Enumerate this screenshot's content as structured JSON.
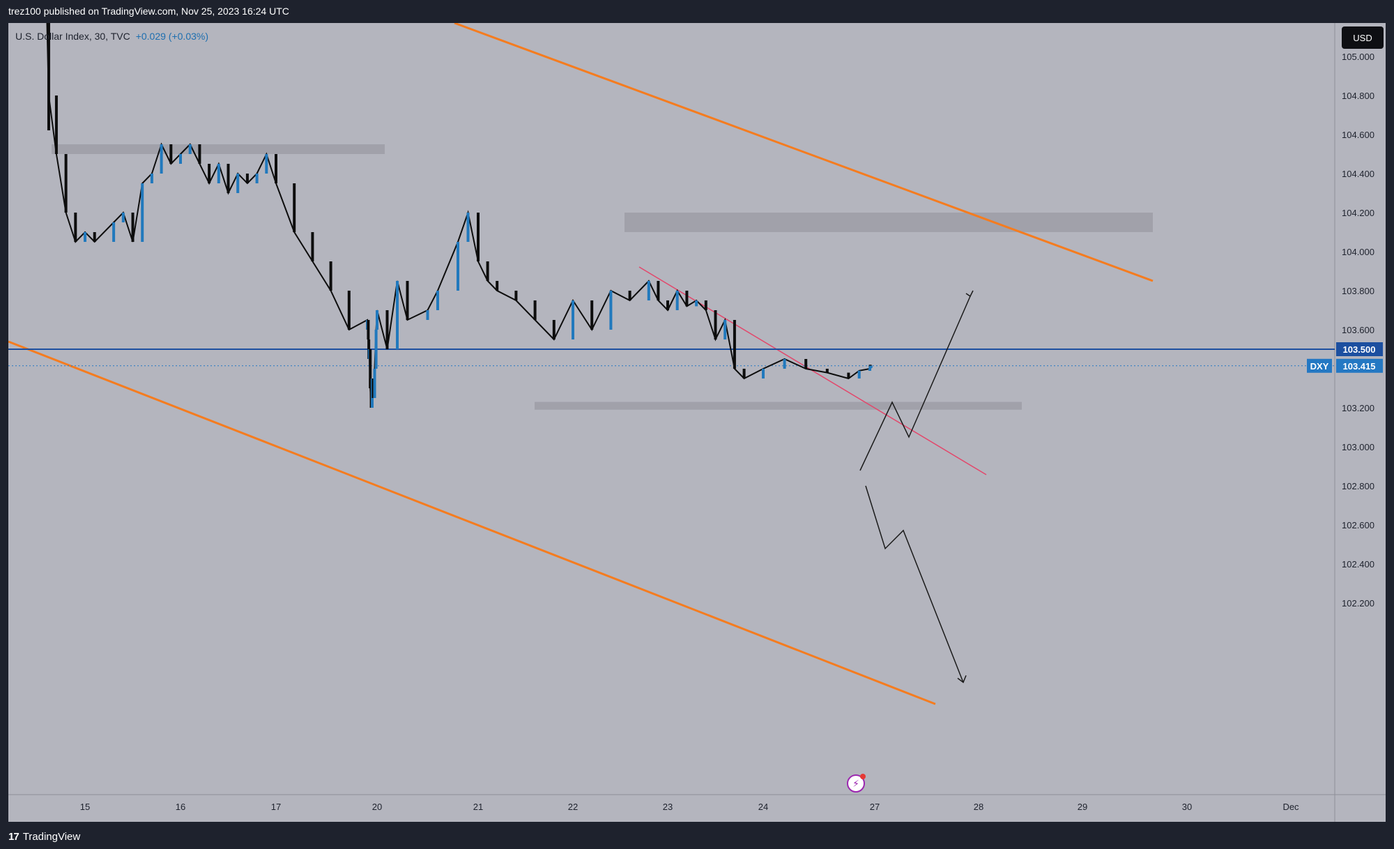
{
  "header": {
    "published": "trez100 published on TradingView.com, Nov 25, 2023 16:24 UTC"
  },
  "legend": {
    "symbol": "U.S. Dollar Index, 30, TVC",
    "change": "+0.029 (+0.03%)"
  },
  "currency_button": "USD",
  "footer": {
    "brand": "TradingView"
  },
  "price_labels": {
    "level_line": "103.500",
    "ticker": "DXY",
    "last_price": "103.415"
  },
  "colors": {
    "background": "#b4b5be",
    "frame": "#1e222d",
    "channel": "#f57c1f",
    "trendline": "#e3476b",
    "level": "#1c4fa0",
    "last_price": "#2478c3",
    "zone": "#9d9ea7",
    "candle_up": "#2179bd",
    "candle_down": "#0d0d0d"
  },
  "chart_data": {
    "type": "line",
    "title": "U.S. Dollar Index, 30, TVC",
    "xlabel": "",
    "ylabel": "",
    "x_ticks": [
      "15",
      "16",
      "17",
      "20",
      "21",
      "22",
      "23",
      "24",
      "27",
      "28",
      "29",
      "30",
      "Dec"
    ],
    "y_ticks": [
      "105.000",
      "104.800",
      "104.600",
      "104.400",
      "104.200",
      "104.000",
      "103.800",
      "103.600",
      "103.400",
      "103.200",
      "103.000",
      "102.800",
      "102.600",
      "102.400",
      "102.200"
    ],
    "ylim": [
      102.1,
      105.2
    ],
    "series": [
      {
        "x": [
          14.6,
          14.62,
          14.7,
          14.8,
          14.9,
          15.0,
          15.1,
          15.3,
          15.4,
          15.5,
          15.6,
          15.7,
          15.8,
          15.9,
          16.0,
          16.1,
          16.2,
          16.3,
          16.4,
          16.5,
          16.6,
          16.7,
          16.8,
          16.9,
          17.0,
          17.2,
          17.4,
          17.6,
          17.8,
          18.0,
          18.2,
          18.3,
          18.4,
          18.6,
          18.8,
          19.0,
          19.2,
          19.5,
          19.8,
          20.0,
          20.1,
          20.2,
          20.3,
          20.5,
          20.6,
          20.8,
          20.9,
          21.0,
          21.1,
          21.2,
          21.4,
          21.6,
          21.8,
          22.0,
          22.2,
          22.4,
          22.6,
          22.8,
          22.9,
          23.0,
          23.1,
          23.2,
          23.3,
          23.4,
          23.5,
          23.6,
          23.7,
          23.8,
          24.0,
          24.2,
          24.4,
          24.6,
          24.8,
          24.9,
          25.0,
          25.1,
          25.2,
          25.3,
          25.4,
          25.5
        ],
        "values": [
          105.35,
          104.8,
          104.5,
          104.2,
          104.05,
          104.1,
          104.05,
          104.15,
          104.2,
          104.05,
          104.35,
          104.4,
          104.55,
          104.45,
          104.5,
          104.55,
          104.45,
          104.35,
          104.45,
          104.3,
          104.4,
          104.35,
          104.4,
          104.5,
          104.35,
          104.1,
          103.95,
          103.8,
          103.6,
          103.65,
          103.55,
          103.45,
          103.5,
          103.3,
          103.2,
          103.35,
          103.25,
          103.4,
          103.6,
          103.7,
          103.5,
          103.85,
          103.65,
          103.7,
          103.8,
          104.05,
          104.2,
          103.95,
          103.85,
          103.8,
          103.75,
          103.65,
          103.55,
          103.75,
          103.6,
          103.8,
          103.75,
          103.85,
          103.75,
          103.7,
          103.8,
          103.72,
          103.75,
          103.7,
          103.55,
          103.65,
          103.4,
          103.35,
          103.4,
          103.45,
          103.4,
          103.38,
          103.35,
          103.39,
          103.4,
          103.42,
          103.41,
          103.415,
          103.415,
          103.415
        ]
      }
    ],
    "annotations": {
      "resistance_zones": [
        [
          104.5,
          104.55
        ],
        [
          104.1,
          104.2
        ]
      ],
      "support_zone": [
        103.19,
        103.23
      ],
      "horizontal_level": 103.5,
      "last_price": 103.415
    },
    "grid": false,
    "legend": "top-left"
  }
}
